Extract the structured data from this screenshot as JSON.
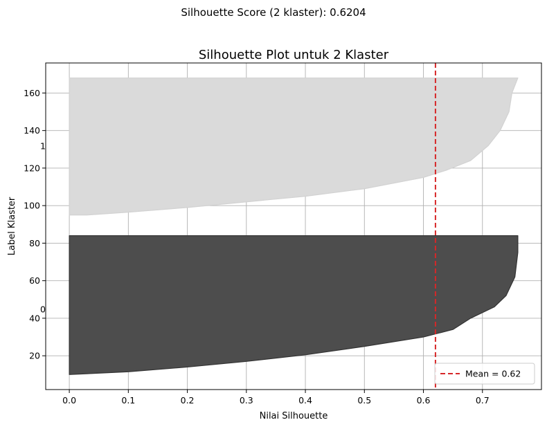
{
  "figure": {
    "suptitle": "Silhouette Score (2 klaster): 0.6204"
  },
  "chart_data": {
    "type": "area",
    "title": "Silhouette Plot untuk 2 Klaster",
    "xlabel": "Nilai Silhouette",
    "ylabel": "Label Klaster",
    "xlim": [
      -0.04,
      0.8
    ],
    "ylim": [
      2,
      176
    ],
    "xticks": [
      0.0,
      0.1,
      0.2,
      0.3,
      0.4,
      0.5,
      0.6,
      0.7
    ],
    "xtick_labels": [
      "0.0",
      "0.1",
      "0.2",
      "0.3",
      "0.4",
      "0.5",
      "0.6",
      "0.7"
    ],
    "yticks": [
      20,
      40,
      60,
      80,
      100,
      120,
      140,
      160
    ],
    "ytick_labels": [
      "20",
      "40",
      "60",
      "80",
      "100",
      "120",
      "140",
      "160"
    ],
    "grid": true,
    "legend_position": "bottom-right",
    "cluster_labels": [
      {
        "label": "0",
        "y": 45
      },
      {
        "label": "1",
        "y": 132
      }
    ],
    "clusters": [
      {
        "cluster": "0",
        "color": "#4d4d4d",
        "edge_color": "#333333",
        "y_start": 10,
        "y_end": 84,
        "profile": [
          {
            "s": 0.0,
            "y": 10
          },
          {
            "s": 0.1,
            "y": 11.5
          },
          {
            "s": 0.2,
            "y": 14
          },
          {
            "s": 0.3,
            "y": 17
          },
          {
            "s": 0.4,
            "y": 20.5
          },
          {
            "s": 0.5,
            "y": 25
          },
          {
            "s": 0.6,
            "y": 30
          },
          {
            "s": 0.65,
            "y": 34
          },
          {
            "s": 0.68,
            "y": 40
          },
          {
            "s": 0.72,
            "y": 46
          },
          {
            "s": 0.74,
            "y": 52
          },
          {
            "s": 0.755,
            "y": 62
          },
          {
            "s": 0.76,
            "y": 75
          },
          {
            "s": 0.76,
            "y": 84
          }
        ]
      },
      {
        "cluster": "1",
        "color": "#dadada",
        "edge_color": "#d2d2d2",
        "y_start": 95,
        "y_end": 168,
        "profile": [
          {
            "s": 0.0,
            "y": 95
          },
          {
            "s": 0.03,
            "y": 95
          },
          {
            "s": 0.1,
            "y": 96.5
          },
          {
            "s": 0.2,
            "y": 99
          },
          {
            "s": 0.3,
            "y": 102
          },
          {
            "s": 0.4,
            "y": 105
          },
          {
            "s": 0.5,
            "y": 109
          },
          {
            "s": 0.6,
            "y": 115
          },
          {
            "s": 0.64,
            "y": 119
          },
          {
            "s": 0.68,
            "y": 124
          },
          {
            "s": 0.71,
            "y": 132
          },
          {
            "s": 0.73,
            "y": 140
          },
          {
            "s": 0.745,
            "y": 150
          },
          {
            "s": 0.75,
            "y": 160
          },
          {
            "s": 0.76,
            "y": 168
          }
        ]
      }
    ],
    "mean_line": {
      "value": 0.6204,
      "color": "#d62728",
      "legend_label": "Mean = 0.62"
    }
  }
}
